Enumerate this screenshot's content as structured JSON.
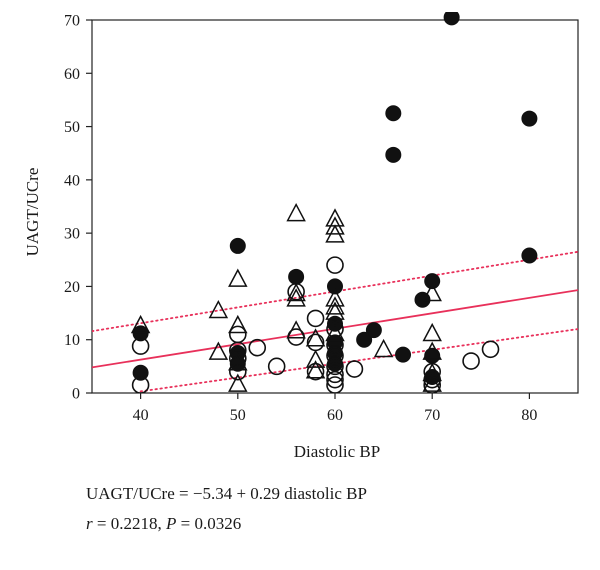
{
  "chart_data": {
    "type": "scatter",
    "xlabel": "Diastolic BP",
    "ylabel": "UAGT/UCre",
    "xlim": [
      35,
      85
    ],
    "ylim": [
      0,
      70
    ],
    "xticks": [
      40,
      50,
      60,
      70,
      80
    ],
    "yticks": [
      0,
      10,
      20,
      30,
      40,
      50,
      60,
      70
    ],
    "grid": false,
    "legend": "none",
    "series": [
      {
        "marker": "filled-circle",
        "color": "#111111",
        "points": [
          [
            40,
            11.2
          ],
          [
            40,
            3.8
          ],
          [
            50,
            27.6
          ],
          [
            50,
            7.5
          ],
          [
            50,
            5.5
          ],
          [
            56,
            21.8
          ],
          [
            60,
            20
          ],
          [
            60,
            13
          ],
          [
            60,
            9.5
          ],
          [
            60,
            7.5
          ],
          [
            60,
            5.5
          ],
          [
            63,
            10
          ],
          [
            64,
            11.8
          ],
          [
            67,
            7.2
          ],
          [
            69,
            17.5
          ],
          [
            70,
            21
          ],
          [
            70,
            7
          ],
          [
            70,
            3
          ],
          [
            66,
            52.5
          ],
          [
            66,
            44.7
          ],
          [
            72,
            70.5
          ],
          [
            80,
            51.5
          ],
          [
            80,
            25.8
          ]
        ]
      },
      {
        "marker": "open-circle",
        "color": "#111111",
        "points": [
          [
            40,
            8.8
          ],
          [
            40,
            1.5
          ],
          [
            50,
            11
          ],
          [
            50,
            8
          ],
          [
            50,
            6.5
          ],
          [
            50,
            4
          ],
          [
            52,
            8.5
          ],
          [
            54,
            5
          ],
          [
            56,
            19
          ],
          [
            56,
            10.5
          ],
          [
            58,
            14
          ],
          [
            58,
            9.5
          ],
          [
            58,
            4
          ],
          [
            60,
            24
          ],
          [
            60,
            12
          ],
          [
            60,
            9
          ],
          [
            60,
            7
          ],
          [
            60,
            5
          ],
          [
            60,
            3.5
          ],
          [
            60,
            2.5
          ],
          [
            60,
            1.5
          ],
          [
            62,
            4.5
          ],
          [
            70,
            4
          ],
          [
            70,
            2.5
          ],
          [
            70,
            1.5
          ],
          [
            74,
            6
          ],
          [
            76,
            8.2
          ]
        ]
      },
      {
        "marker": "open-triangle",
        "color": "#111111",
        "points": [
          [
            40,
            12.5
          ],
          [
            48,
            15.3
          ],
          [
            48,
            7.5
          ],
          [
            50,
            21.2
          ],
          [
            50,
            12.5
          ],
          [
            50,
            5.5
          ],
          [
            50,
            1.5
          ],
          [
            56,
            33.5
          ],
          [
            56,
            18.5
          ],
          [
            56,
            17.5
          ],
          [
            56,
            11.5
          ],
          [
            58,
            10
          ],
          [
            58,
            6
          ],
          [
            58,
            4
          ],
          [
            60,
            32.5
          ],
          [
            60,
            31
          ],
          [
            60,
            29.5
          ],
          [
            60,
            17.5
          ],
          [
            60,
            16
          ],
          [
            60,
            15
          ],
          [
            60,
            11
          ],
          [
            65,
            8
          ],
          [
            70,
            18.5
          ],
          [
            70,
            11
          ],
          [
            70,
            7.5
          ],
          [
            70,
            3.5
          ],
          [
            70,
            1.5
          ]
        ]
      }
    ],
    "fit_line": {
      "intercept": -5.34,
      "slope": 0.29,
      "color": "#e8305a"
    },
    "confidence_band": {
      "color": "#e8305a",
      "style": "dotted",
      "upper": [
        [
          35,
          11.6
        ],
        [
          85,
          26.5
        ]
      ],
      "lower": [
        [
          40,
          0.3
        ],
        [
          85,
          12
        ]
      ]
    }
  },
  "annotation": {
    "equation_lhs": "UAGT/UCre",
    "equation_rhs": "= −5.34 + 0.29 diastolic BP",
    "r_symbol": "r",
    "r_value": "= 0.2218,",
    "p_symbol": "P",
    "p_value": "= 0.0326"
  }
}
